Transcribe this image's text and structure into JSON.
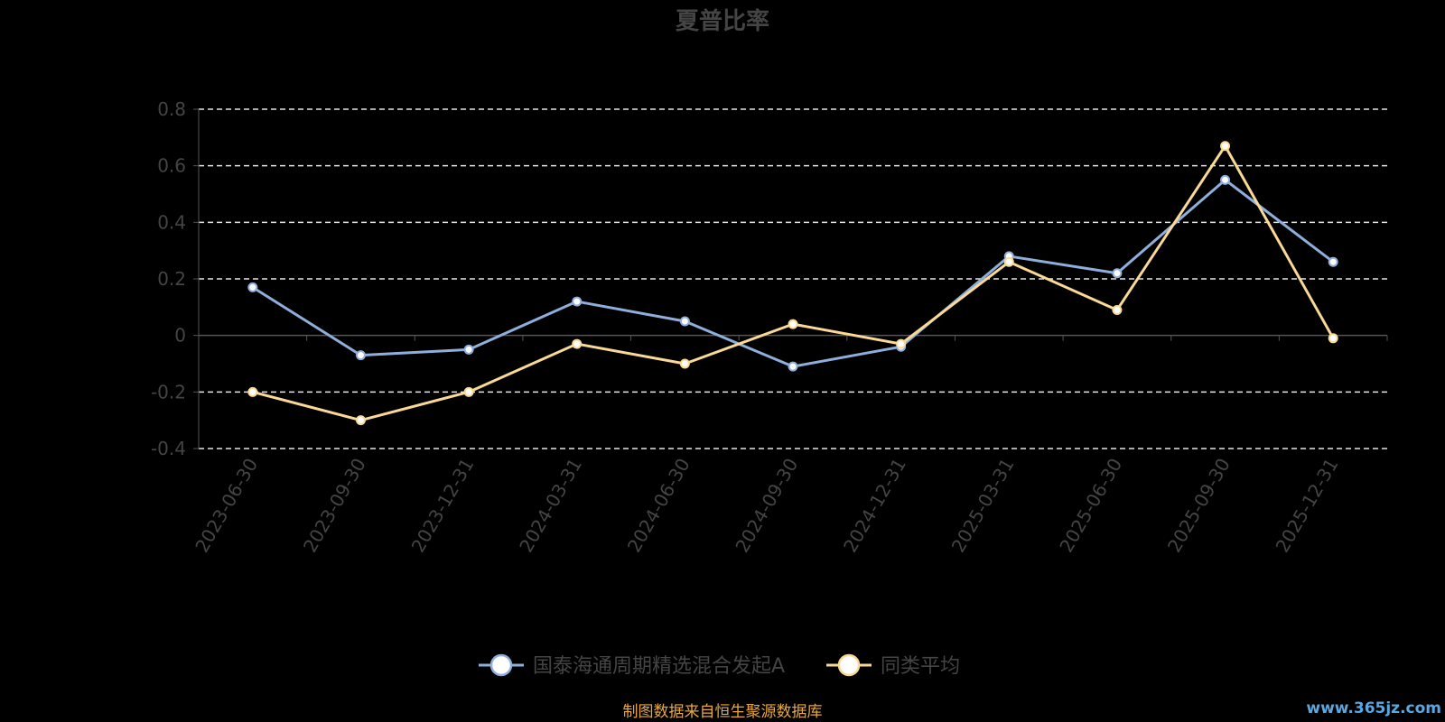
{
  "chart_data": {
    "type": "line",
    "title": "夏普比率",
    "categories": [
      "2023-06-30",
      "2023-09-30",
      "2023-12-31",
      "2024-03-31",
      "2024-06-30",
      "2024-09-30",
      "2024-12-31",
      "2025-03-31",
      "2025-06-30",
      "2025-09-30",
      "2025-12-31"
    ],
    "series": [
      {
        "name": "国泰海通周期精选混合发起A",
        "color": "#8eaedb",
        "values": [
          0.17,
          -0.07,
          -0.05,
          0.12,
          0.05,
          -0.11,
          -0.04,
          0.28,
          0.22,
          0.55,
          0.26
        ]
      },
      {
        "name": "同类平均",
        "color": "#f9d995",
        "values": [
          -0.2,
          -0.3,
          -0.2,
          -0.03,
          -0.1,
          0.04,
          -0.03,
          0.26,
          0.09,
          0.67,
          -0.01
        ]
      }
    ],
    "ylim": [
      -0.4,
      0.8
    ],
    "yticks": [
      {
        "value": -0.4,
        "label": "-0.4"
      },
      {
        "value": -0.2,
        "label": "-0.2"
      },
      {
        "value": 0,
        "label": "0"
      },
      {
        "value": 0.2,
        "label": "0.2"
      },
      {
        "value": 0.4,
        "label": "0.4"
      },
      {
        "value": 0.6,
        "label": "0.6"
      },
      {
        "value": 0.8,
        "label": "0.8"
      }
    ],
    "grid": true,
    "grid_style": "dashed",
    "legend_position": "bottom-center",
    "xlabel": "",
    "ylabel": ""
  },
  "footer": {
    "source": "制图数据来自恒生聚源数据库",
    "watermark": "www.365jz.com"
  }
}
